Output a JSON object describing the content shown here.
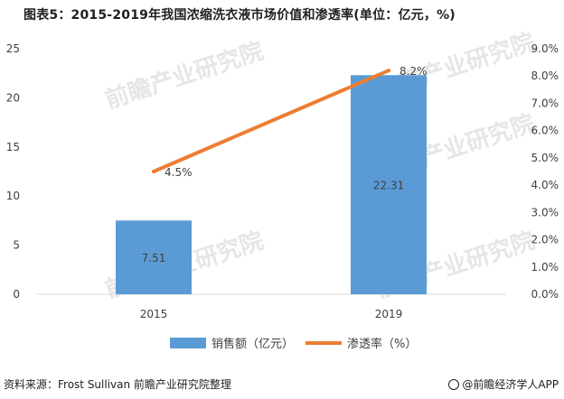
{
  "title": "图表5：2015-2019年我国浓缩洗衣液市场价值和渗透率(单位：亿元，%)",
  "source": "资料来源：Frost Sullivan 前瞻产业研究院整理",
  "brand": "@前瞻经济学人APP",
  "watermark": "前瞻产业研究院",
  "colors": {
    "bar": "#5b9bd5",
    "line": "#ed7d31",
    "axis": "#d9d9d9"
  },
  "chart_data": {
    "type": "bar",
    "categories": [
      "2015",
      "2019"
    ],
    "series": [
      {
        "name": "销售额（亿元）",
        "type": "bar",
        "axis": "left",
        "values": [
          7.51,
          22.31
        ],
        "labels": [
          "7.51",
          "22.31"
        ]
      },
      {
        "name": "渗透率（%）",
        "type": "line",
        "axis": "right",
        "values": [
          4.5,
          8.2
        ],
        "labels": [
          "4.5%",
          "8.2%"
        ]
      }
    ],
    "y_left": {
      "min": 0,
      "max": 25,
      "ticks": [
        "0",
        "5",
        "10",
        "15",
        "20",
        "25"
      ]
    },
    "y_right": {
      "min": 0,
      "max": 9,
      "ticks": [
        "0.0%",
        "1.0%",
        "2.0%",
        "3.0%",
        "4.0%",
        "5.0%",
        "6.0%",
        "7.0%",
        "8.0%",
        "9.0%"
      ]
    },
    "legend_position": "bottom",
    "grid": false
  }
}
